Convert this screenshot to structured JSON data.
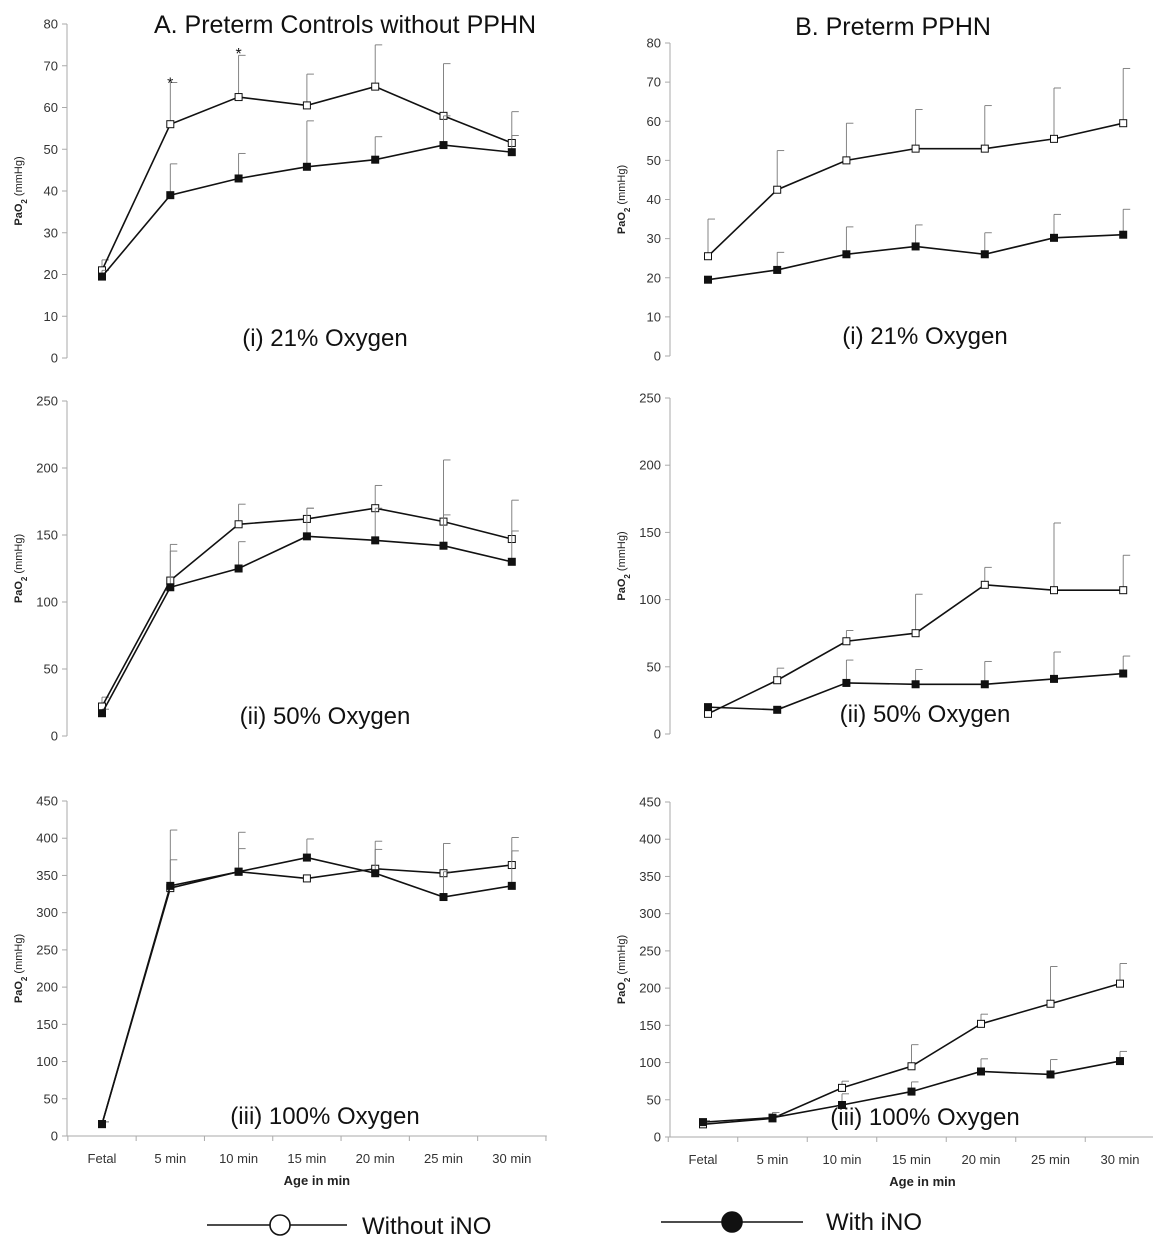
{
  "columns": [
    {
      "title": "A. Preterm Controls without PPHN"
    },
    {
      "title": "B. Preterm PPHN"
    }
  ],
  "legend": {
    "without": "Without iNO",
    "with": "With iNO"
  },
  "chart_data": [
    {
      "type": "line",
      "panel": "A-i",
      "title": "(i) 21% Oxygen",
      "ylabel": "PaO2 (mmHg)",
      "xlabel": "",
      "ylim": [
        0,
        80
      ],
      "yticks": [
        0,
        10,
        20,
        30,
        40,
        50,
        60,
        70,
        80
      ],
      "categories": [
        "Fetal",
        "5 min",
        "10 min",
        "15 min",
        "20 min",
        "25 min",
        "30 min"
      ],
      "grid": false,
      "series": [
        {
          "name": "Without iNO",
          "values": [
            21,
            56,
            62.5,
            60.5,
            65,
            58,
            51.5
          ],
          "err": [
            2.5,
            10,
            10,
            7.5,
            10,
            12.5,
            7.5
          ],
          "marker": "open"
        },
        {
          "name": "With iNO",
          "values": [
            19.5,
            39,
            43,
            45.8,
            47.5,
            51,
            49.3
          ],
          "err": [
            1.5,
            7.5,
            6,
            11,
            5.5,
            7,
            4
          ],
          "marker": "filled"
        }
      ],
      "annotations": [
        {
          "text": "*",
          "x": "5 min",
          "y": 66
        },
        {
          "text": "*",
          "x": "10 min",
          "y": 73
        }
      ]
    },
    {
      "type": "line",
      "panel": "A-ii",
      "title": "(ii) 50% Oxygen",
      "ylabel": "PaO2 (mmHg)",
      "xlabel": "",
      "ylim": [
        0,
        250
      ],
      "yticks": [
        0,
        50,
        100,
        150,
        200,
        250
      ],
      "categories": [
        "Fetal",
        "5 min",
        "10 min",
        "15 min",
        "20 min",
        "25 min",
        "30 min"
      ],
      "grid": false,
      "series": [
        {
          "name": "Without iNO",
          "values": [
            22,
            116,
            158,
            162,
            170,
            160,
            147
          ],
          "err": [
            7,
            27,
            15,
            8,
            17,
            46,
            29
          ],
          "marker": "open"
        },
        {
          "name": "With iNO",
          "values": [
            17,
            111,
            125,
            149,
            146,
            142,
            130
          ],
          "err": [
            3,
            27,
            20,
            21,
            24,
            23,
            23
          ],
          "marker": "filled"
        }
      ],
      "annotations": []
    },
    {
      "type": "line",
      "panel": "A-iii",
      "title": "(iii) 100% Oxygen",
      "ylabel": "PaO2 (mmHg)",
      "xlabel": "Age in min",
      "ylim": [
        0,
        450
      ],
      "yticks": [
        0,
        50,
        100,
        150,
        200,
        250,
        300,
        350,
        400,
        450
      ],
      "categories": [
        "Fetal",
        "5 min",
        "10 min",
        "15 min",
        "20 min",
        "25 min",
        "30 min"
      ],
      "grid": false,
      "series": [
        {
          "name": "Without iNO",
          "values": [
            16,
            333,
            355,
            346,
            359,
            353,
            364
          ],
          "err": [
            3,
            78,
            53,
            0,
            37,
            40,
            37
          ],
          "marker": "open"
        },
        {
          "name": "With iNO",
          "values": [
            16,
            336,
            355,
            374,
            353,
            321,
            336
          ],
          "err": [
            3,
            35,
            31,
            25,
            32,
            34,
            47
          ],
          "marker": "filled"
        }
      ],
      "annotations": []
    },
    {
      "type": "line",
      "panel": "B-i",
      "title": "(i) 21% Oxygen",
      "ylabel": "PaO2 (mmHg)",
      "xlabel": "",
      "ylim": [
        0,
        80
      ],
      "yticks": [
        0,
        10,
        20,
        30,
        40,
        50,
        60,
        70,
        80
      ],
      "categories": [
        "Fetal",
        "5 min",
        "10 min",
        "15 min",
        "20 min",
        "25 min",
        "30 min"
      ],
      "grid": false,
      "series": [
        {
          "name": "Without iNO",
          "values": [
            25.5,
            42.5,
            50,
            53,
            53,
            55.5,
            59.5
          ],
          "err": [
            9.5,
            10,
            9.5,
            10,
            11,
            13,
            14
          ],
          "marker": "open"
        },
        {
          "name": "With iNO",
          "values": [
            19.5,
            22,
            26,
            28,
            26,
            30.2,
            31
          ],
          "err": [
            0,
            4.5,
            7,
            5.5,
            5.5,
            6,
            6.5
          ],
          "marker": "filled"
        }
      ],
      "annotations": [
        {
          "text": "*",
          "x": "30 min",
          "y": 59
        }
      ]
    },
    {
      "type": "line",
      "panel": "B-ii",
      "title": "(ii) 50% Oxygen",
      "ylabel": "PaO2 (mmHg)",
      "xlabel": "",
      "ylim": [
        0,
        250
      ],
      "yticks": [
        0,
        50,
        100,
        150,
        200,
        250
      ],
      "categories": [
        "Fetal",
        "5 min",
        "10 min",
        "15 min",
        "20 min",
        "25 min",
        "30 min"
      ],
      "grid": false,
      "series": [
        {
          "name": "Without iNO",
          "values": [
            15,
            40,
            69,
            75,
            111,
            107,
            107
          ],
          "err": [
            2,
            9,
            8,
            29,
            13,
            50,
            26
          ],
          "marker": "open"
        },
        {
          "name": "With iNO",
          "values": [
            20,
            18,
            38,
            37,
            37,
            41,
            45
          ],
          "err": [
            0,
            2,
            17,
            11,
            17,
            20,
            13
          ],
          "marker": "filled"
        }
      ],
      "annotations": [
        {
          "text": "*",
          "x": "30 min",
          "y": 145
        }
      ]
    },
    {
      "type": "line",
      "panel": "B-iii",
      "title": "(iii) 100% Oxygen",
      "ylabel": "PaO2 (mmHg)",
      "xlabel": "Age in min",
      "ylim": [
        0,
        450
      ],
      "yticks": [
        0,
        50,
        100,
        150,
        200,
        250,
        300,
        350,
        400,
        450
      ],
      "categories": [
        "Fetal",
        "5 min",
        "10 min",
        "15 min",
        "20 min",
        "25 min",
        "30 min"
      ],
      "grid": false,
      "series": [
        {
          "name": "Without iNO",
          "values": [
            17,
            25,
            66,
            95,
            152,
            179,
            206
          ],
          "err": [
            3,
            8,
            9,
            29,
            13,
            50,
            27
          ],
          "marker": "open"
        },
        {
          "name": "With iNO",
          "values": [
            20,
            26,
            43,
            61,
            88,
            84,
            102
          ],
          "err": [
            2,
            3,
            15,
            13,
            17,
            20,
            13
          ],
          "marker": "filled"
        }
      ],
      "annotations": [
        {
          "text": "*",
          "x": "30 min",
          "y": 210
        }
      ]
    }
  ]
}
